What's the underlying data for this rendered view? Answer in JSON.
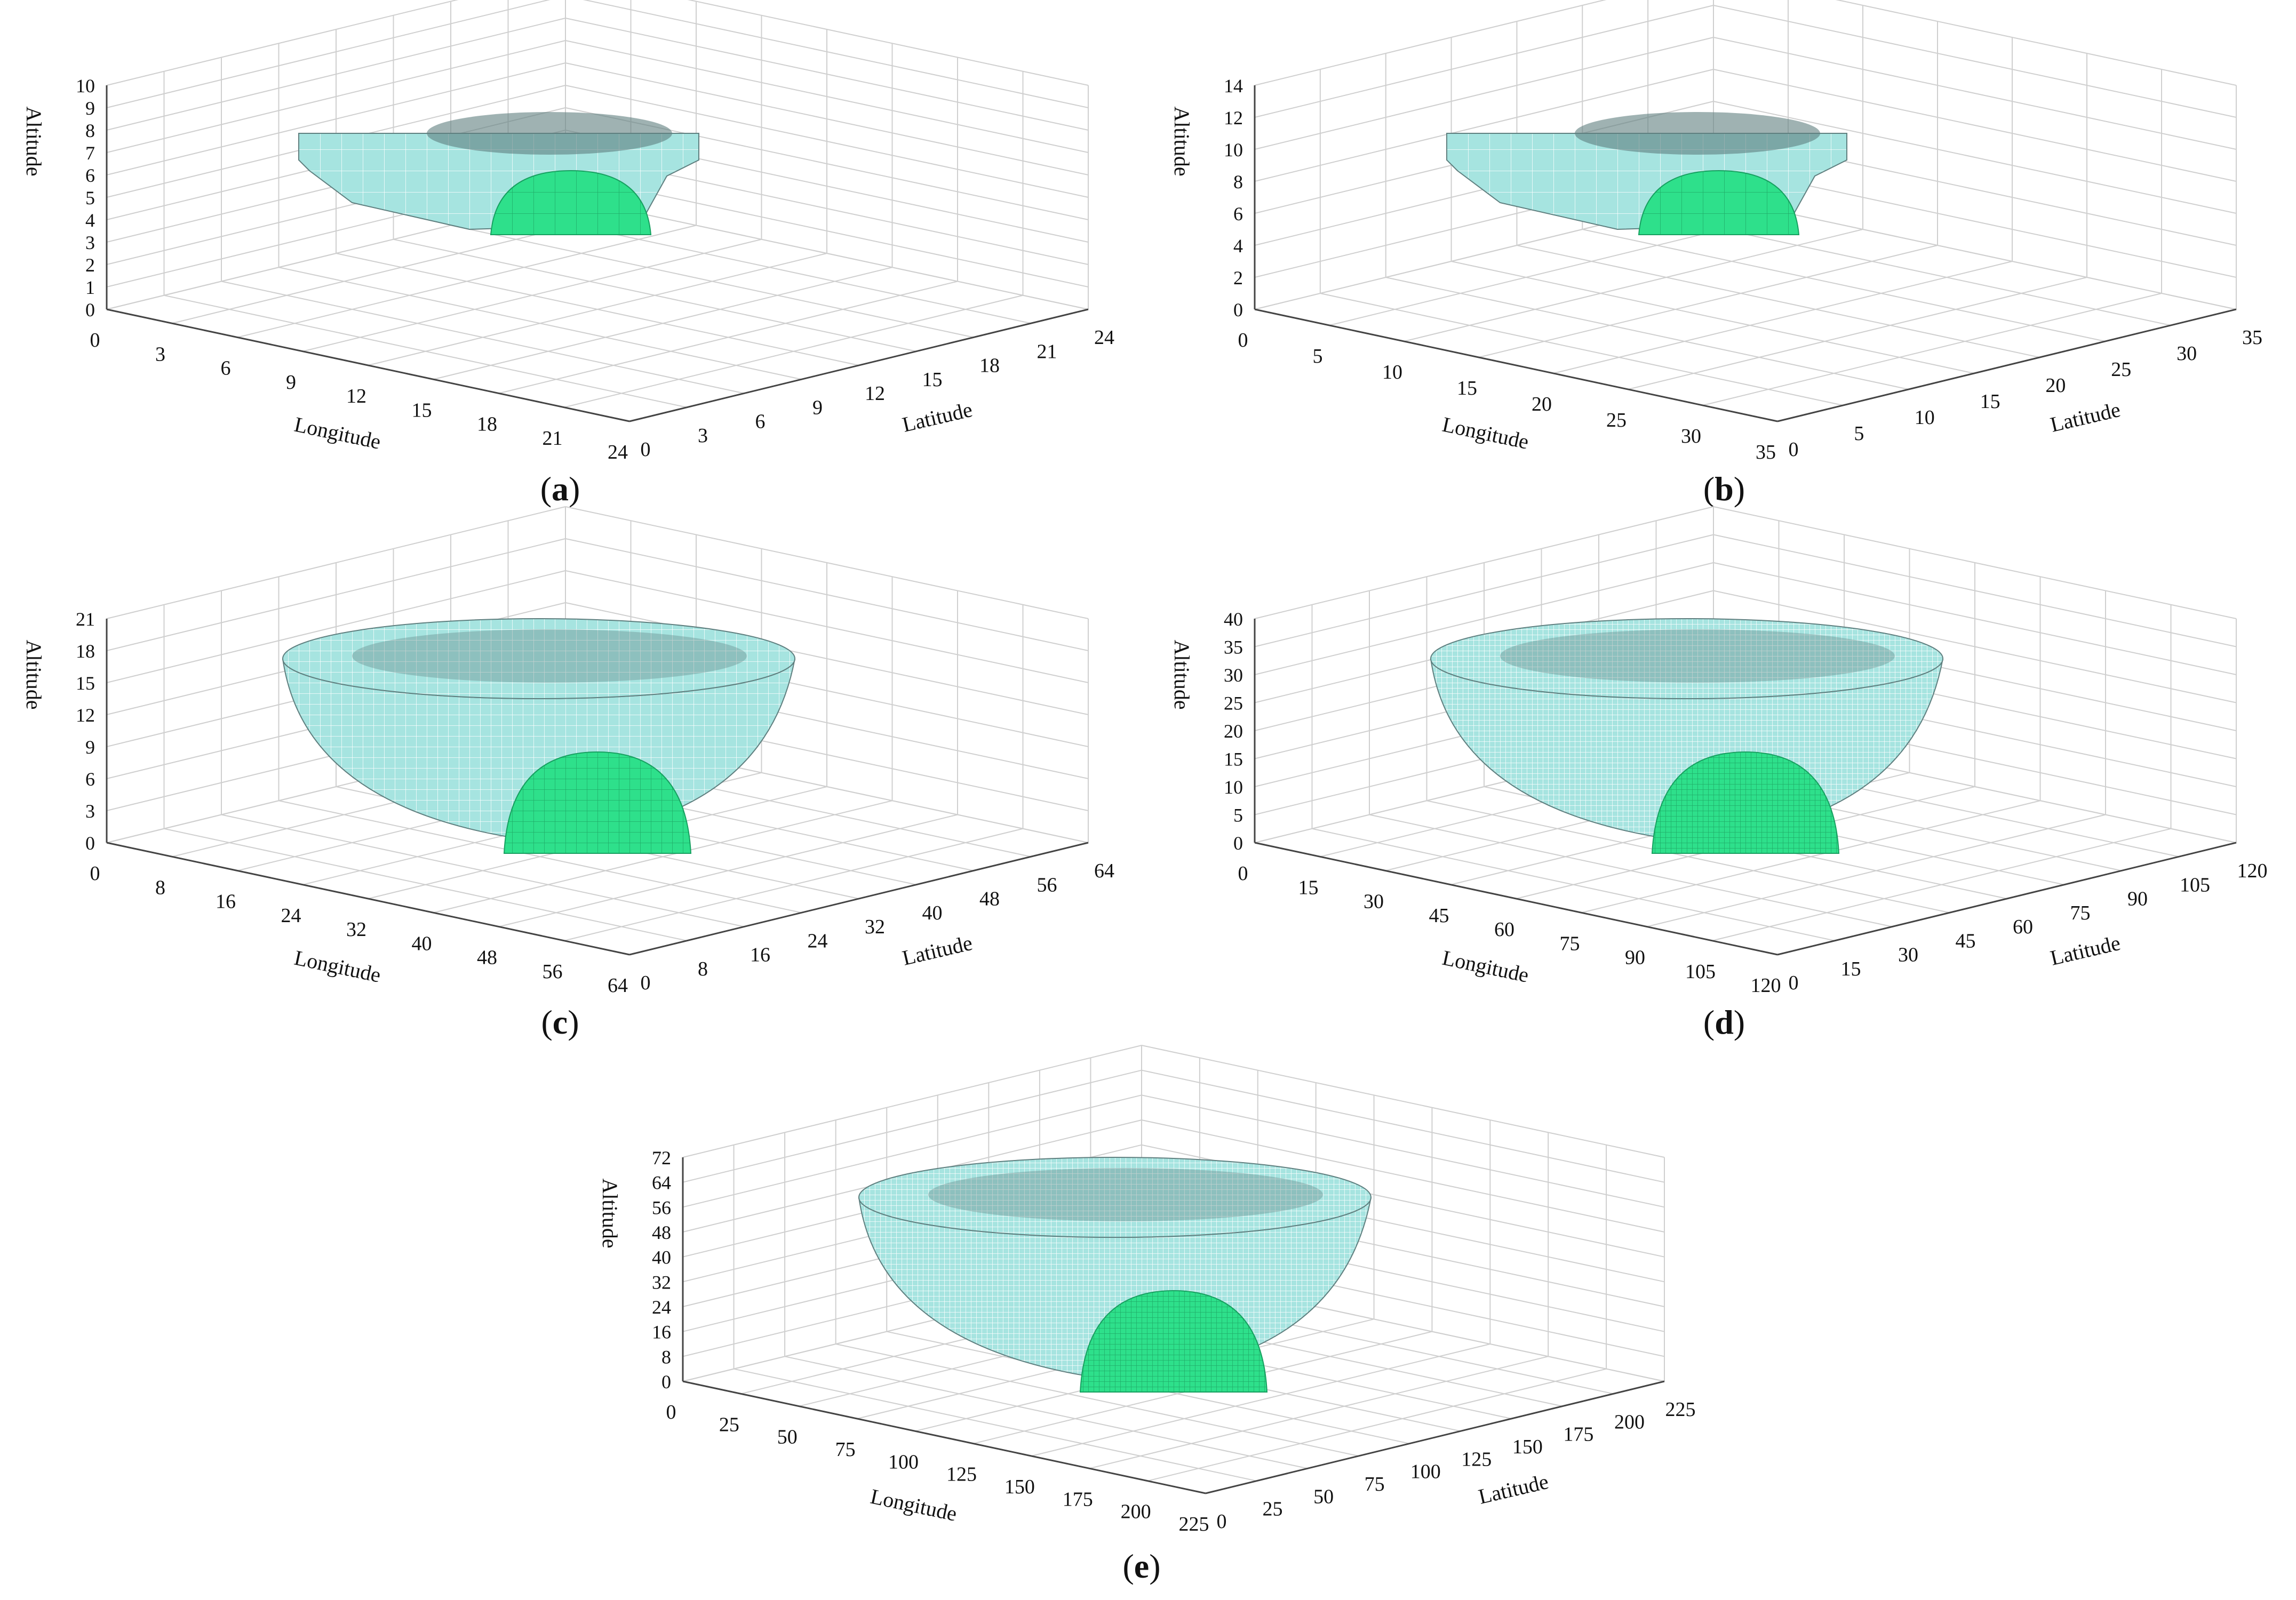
{
  "figure": {
    "axis_labels": {
      "x": "Longitude",
      "y": "Latitude",
      "z": "Altitude"
    },
    "colors": {
      "shell": "#a6e4e0",
      "shell_dark": "#5f7f7f",
      "mound": "#2ee08b",
      "grid": "#cfcfcf",
      "axis": "#444444"
    }
  },
  "panels": [
    {
      "id": "a",
      "caption_open": "(",
      "caption_letter": "a",
      "caption_close": ")",
      "x_ticks": [
        "0",
        "3",
        "6",
        "9",
        "12",
        "15",
        "18",
        "21",
        "24"
      ],
      "y_ticks": [
        "0",
        "3",
        "6",
        "9",
        "12",
        "15",
        "18",
        "21",
        "24"
      ],
      "z_ticks": [
        "0",
        "1",
        "2",
        "3",
        "4",
        "5",
        "6",
        "7",
        "8",
        "9",
        "10"
      ],
      "style": "coarse"
    },
    {
      "id": "b",
      "caption_open": "(",
      "caption_letter": "b",
      "caption_close": ")",
      "x_ticks": [
        "0",
        "5",
        "10",
        "15",
        "20",
        "25",
        "30",
        "35"
      ],
      "y_ticks": [
        "0",
        "5",
        "10",
        "15",
        "20",
        "25",
        "30",
        "35"
      ],
      "z_ticks": [
        "0",
        "2",
        "4",
        "6",
        "8",
        "10",
        "12",
        "14"
      ],
      "style": "coarse"
    },
    {
      "id": "c",
      "caption_open": "(",
      "caption_letter": "c",
      "caption_close": ")",
      "x_ticks": [
        "0",
        "8",
        "16",
        "24",
        "32",
        "40",
        "48",
        "56",
        "64"
      ],
      "y_ticks": [
        "0",
        "8",
        "16",
        "24",
        "32",
        "40",
        "48",
        "56",
        "64"
      ],
      "z_ticks": [
        "0",
        "3",
        "6",
        "9",
        "12",
        "15",
        "18",
        "21"
      ],
      "style": "medium"
    },
    {
      "id": "d",
      "caption_open": "(",
      "caption_letter": "d",
      "caption_close": ")",
      "x_ticks": [
        "0",
        "15",
        "30",
        "45",
        "60",
        "75",
        "90",
        "105",
        "120"
      ],
      "y_ticks": [
        "0",
        "15",
        "30",
        "45",
        "60",
        "75",
        "90",
        "105",
        "120"
      ],
      "z_ticks": [
        "0",
        "5",
        "10",
        "15",
        "20",
        "25",
        "30",
        "35",
        "40"
      ],
      "style": "fine"
    },
    {
      "id": "e",
      "caption_open": "(",
      "caption_letter": "e",
      "caption_close": ")",
      "x_ticks": [
        "0",
        "25",
        "50",
        "75",
        "100",
        "125",
        "150",
        "175",
        "200",
        "225"
      ],
      "y_ticks": [
        "0",
        "25",
        "50",
        "75",
        "100",
        "125",
        "150",
        "175",
        "200",
        "225"
      ],
      "z_ticks": [
        "0",
        "8",
        "16",
        "24",
        "32",
        "40",
        "48",
        "56",
        "64",
        "72"
      ],
      "style": "fine"
    }
  ]
}
